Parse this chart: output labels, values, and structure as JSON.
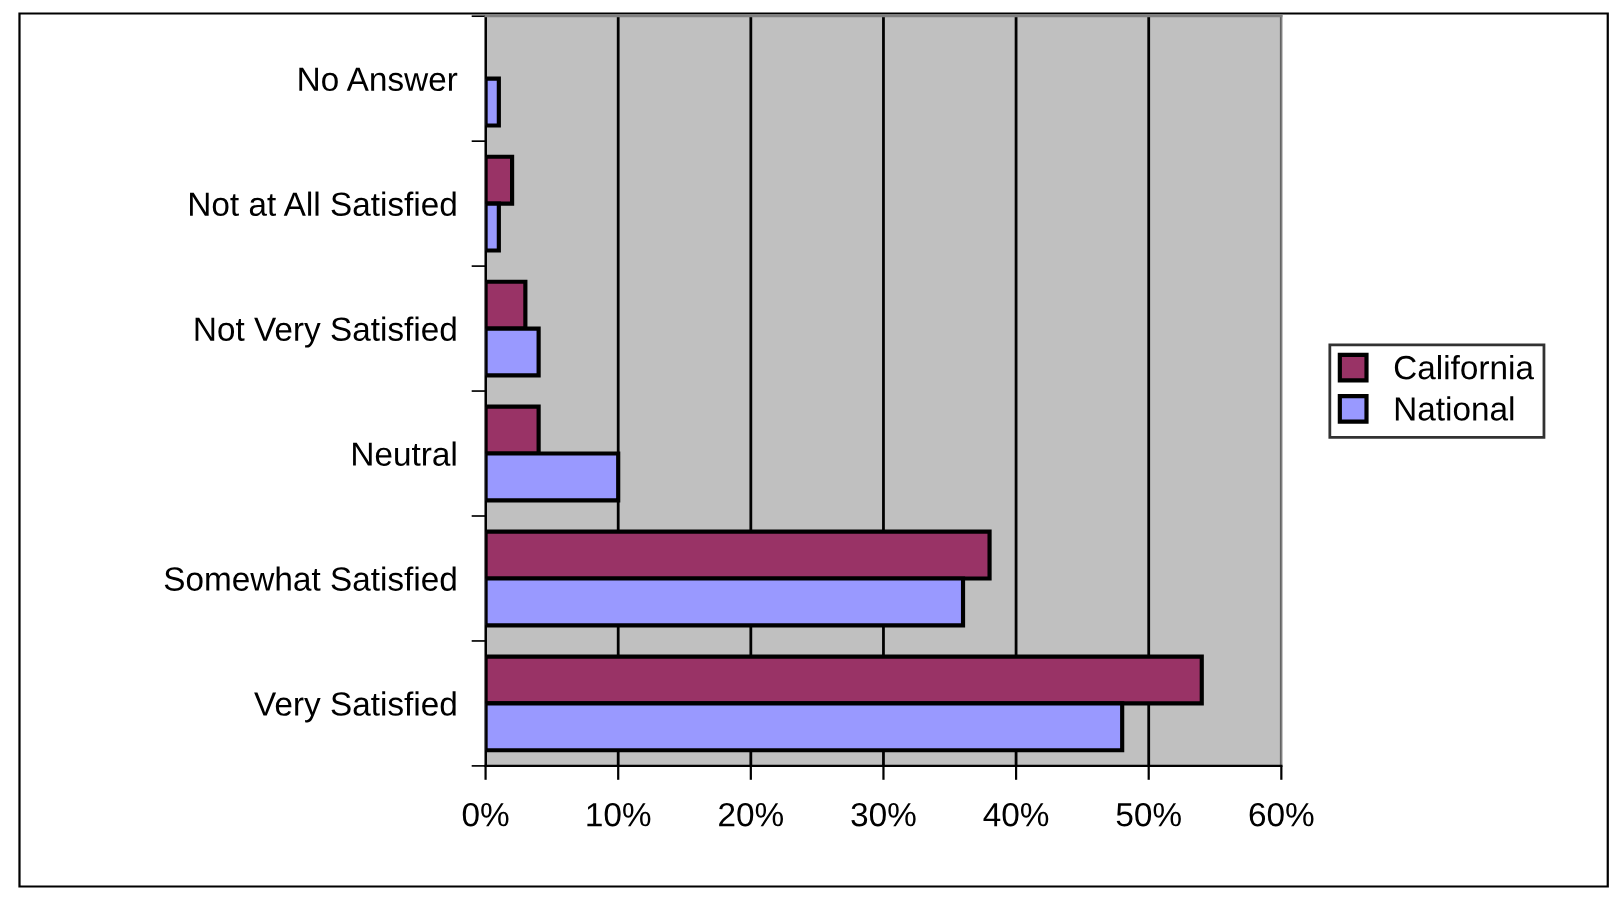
{
  "chart_data": {
    "type": "bar",
    "orientation": "horizontal",
    "categories": [
      "No Answer",
      "Not at All Satisfied",
      "Not Very Satisfied",
      "Neutral",
      "Somewhat Satisfied",
      "Very Satisfied"
    ],
    "series": [
      {
        "name": "California",
        "color": "#993366",
        "values": [
          null,
          2,
          3,
          4,
          38,
          54
        ]
      },
      {
        "name": "National",
        "color": "#9999ff",
        "values": [
          1,
          1,
          4,
          10,
          36,
          48
        ]
      }
    ],
    "xlim": [
      0,
      60
    ],
    "xticks": [
      {
        "value": 0,
        "label": "0%"
      },
      {
        "value": 10,
        "label": "10%"
      },
      {
        "value": 20,
        "label": "20%"
      },
      {
        "value": 30,
        "label": "30%"
      },
      {
        "value": 40,
        "label": "40%"
      },
      {
        "value": 50,
        "label": "50%"
      },
      {
        "value": 60,
        "label": "60%"
      }
    ],
    "grid": "x",
    "legend": "right"
  }
}
